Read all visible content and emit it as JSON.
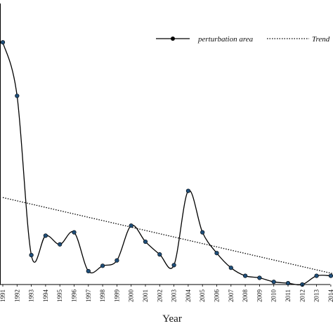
{
  "chart_data": {
    "type": "line",
    "x": [
      "1991",
      "1992",
      "1993",
      "1994",
      "1995",
      "1996",
      "1997",
      "1998",
      "1999",
      "2000",
      "2001",
      "2002",
      "2003",
      "2004",
      "2005",
      "2006",
      "2007",
      "2008",
      "2009",
      "2010",
      "2011",
      "2012",
      "2013",
      "2014"
    ],
    "series": [
      {
        "name": "perturbation area",
        "values": [
          362,
          282,
          44,
          73,
          60,
          78,
          20,
          28,
          36,
          88,
          64,
          45,
          29,
          140,
          78,
          47,
          25,
          13,
          10,
          4,
          2,
          0,
          13,
          13
        ],
        "color": "#000000",
        "marker_color": "#1f4e79"
      },
      {
        "name": "Trend",
        "type": "line",
        "style": "dotted",
        "start": [
          "1991",
          130
        ],
        "end": [
          "2014",
          14
        ],
        "color": "#000000"
      }
    ],
    "xlabel": "Year",
    "ylabel": "",
    "ylim": [
      0,
      420
    ],
    "grid": false,
    "legend": {
      "position": "top-right",
      "entries": [
        "perturbation area",
        "Trend"
      ]
    }
  }
}
